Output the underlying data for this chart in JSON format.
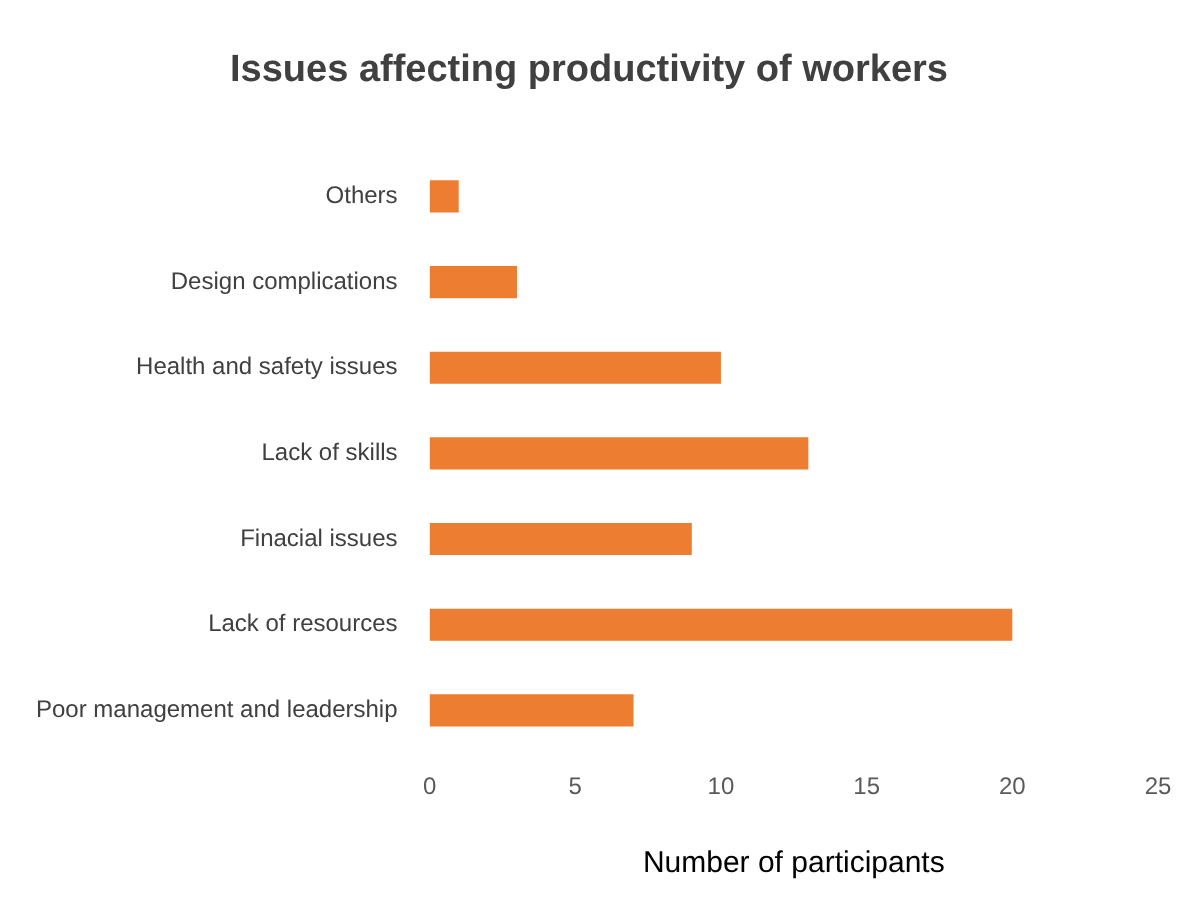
{
  "chart_data": {
    "type": "bar",
    "orientation": "horizontal",
    "title": "Issues affecting productivity of workers",
    "xlabel": "Number of participants",
    "categories": [
      "Others",
      "Design complications",
      "Health and safety issues",
      "Lack of skills",
      "Finacial issues",
      "Lack of resources",
      "Poor management and leadership"
    ],
    "values": [
      1,
      3,
      10,
      13,
      9,
      20,
      7
    ],
    "color": "#ed7d31",
    "xlim": [
      0,
      25
    ],
    "xticks": [
      0,
      5,
      10,
      15,
      20,
      25
    ],
    "grid": false,
    "legend": false
  }
}
